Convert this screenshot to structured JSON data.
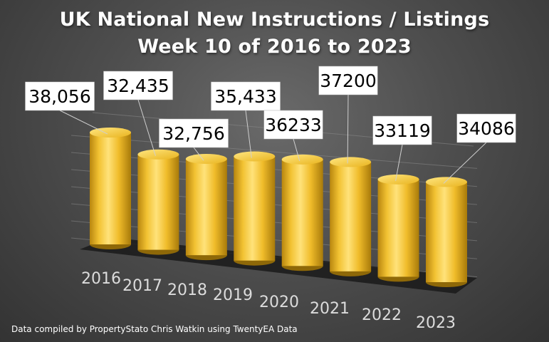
{
  "chart_data": {
    "type": "bar",
    "title": "UK National New Instructions / Listings",
    "subtitle": "Week 10 of 2016 to 2023",
    "categories": [
      "2016",
      "2017",
      "2018",
      "2019",
      "2020",
      "2021",
      "2022",
      "2023"
    ],
    "values": [
      38056,
      32435,
      32756,
      35433,
      36233,
      37200,
      33119,
      34086
    ],
    "data_labels": [
      "38,056",
      "32,435",
      "32,756",
      "35,433",
      "36233",
      "37200",
      "33119",
      "34086"
    ],
    "xlabel": "",
    "ylabel": "",
    "ylim": [
      0,
      40000
    ],
    "grid": true,
    "legend": "none",
    "bar_color": "#f0c02a",
    "note": "Data compiled by PropertyStato Chris Watkin using TwentyEA Data"
  }
}
